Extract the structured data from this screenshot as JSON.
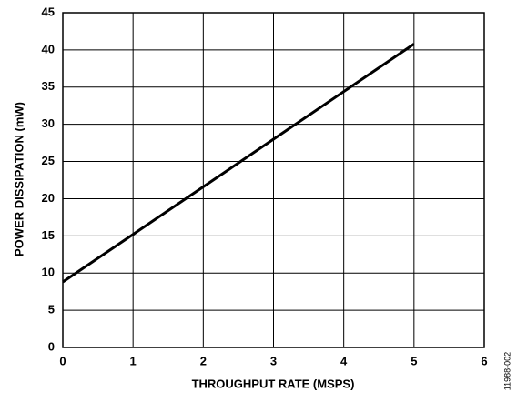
{
  "chart_data": {
    "type": "line",
    "x_label": "THROUGHPUT RATE (MSPS)",
    "y_label": "POWER DISSIPATION (mW)",
    "annotation": "11988-002",
    "x": [
      0,
      1,
      2,
      3,
      4,
      5
    ],
    "series": [
      {
        "color": "#000000",
        "values": [
          8.8,
          15.2,
          21.6,
          28.0,
          34.4,
          40.8
        ]
      }
    ],
    "xlim": [
      0,
      6
    ],
    "xticks": [
      0,
      1,
      2,
      3,
      4,
      5,
      6
    ],
    "ylim": [
      0,
      45
    ],
    "yticks": [
      0,
      5,
      10,
      15,
      20,
      25,
      30,
      35,
      40,
      45
    ],
    "grid": true
  }
}
